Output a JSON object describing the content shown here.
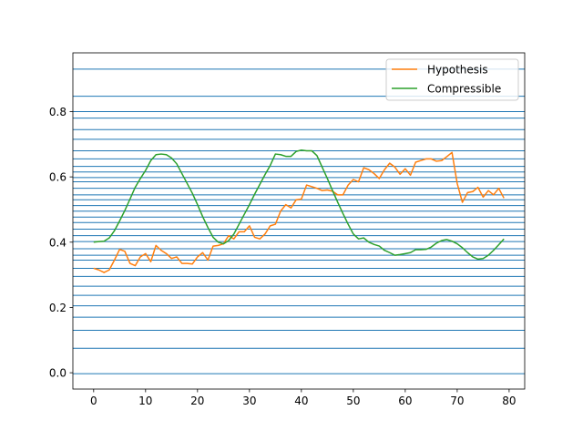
{
  "chart_data": {
    "type": "line",
    "title": "",
    "xlabel": "",
    "ylabel": "",
    "xlim": [
      -4,
      83
    ],
    "ylim": [
      -0.05,
      0.98
    ],
    "x_ticks": [
      0,
      10,
      20,
      30,
      40,
      50,
      60,
      70,
      80
    ],
    "x_tick_labels": [
      "0",
      "10",
      "20",
      "30",
      "40",
      "50",
      "60",
      "70",
      "80"
    ],
    "y_ticks": [
      0.0,
      0.2,
      0.4,
      0.6,
      0.8
    ],
    "y_tick_labels": [
      "0.0",
      "0.2",
      "0.4",
      "0.6",
      "0.8"
    ],
    "hlines": {
      "color": "#1f77b4",
      "values": [
        0.93,
        0.847,
        0.8,
        0.78,
        0.745,
        0.715,
        0.68,
        0.655,
        0.632,
        0.615,
        0.598,
        0.585,
        0.565,
        0.545,
        0.53,
        0.512,
        0.495,
        0.477,
        0.46,
        0.44,
        0.42,
        0.402,
        0.38,
        0.36,
        0.345,
        0.32,
        0.295,
        0.265,
        0.237,
        0.205,
        0.17,
        0.13,
        0.075,
        -0.003
      ]
    },
    "legend": {
      "position": "top-right",
      "entries": [
        "Hypothesis",
        "Compressible"
      ]
    },
    "series": [
      {
        "name": "Hypothesis",
        "color": "#ff7f0e",
        "x": [
          0,
          1,
          2,
          3,
          4,
          5,
          6,
          7,
          8,
          9,
          10,
          11,
          12,
          13,
          14,
          15,
          16,
          17,
          18,
          19,
          20,
          21,
          22,
          23,
          24,
          25,
          26,
          27,
          28,
          29,
          30,
          31,
          32,
          33,
          34,
          35,
          36,
          37,
          38,
          39,
          40,
          41,
          42,
          43,
          44,
          45,
          46,
          47,
          48,
          49,
          50,
          51,
          52,
          53,
          54,
          55,
          56,
          57,
          58,
          59,
          60,
          61,
          62,
          63,
          64,
          65,
          66,
          67,
          68,
          69,
          70,
          71,
          72,
          73,
          74,
          75,
          76,
          77,
          78,
          79
        ],
        "values": [
          0.32,
          0.315,
          0.307,
          0.315,
          0.345,
          0.378,
          0.372,
          0.335,
          0.328,
          0.355,
          0.365,
          0.34,
          0.39,
          0.375,
          0.365,
          0.35,
          0.355,
          0.335,
          0.335,
          0.333,
          0.355,
          0.368,
          0.345,
          0.388,
          0.39,
          0.395,
          0.42,
          0.41,
          0.432,
          0.432,
          0.45,
          0.415,
          0.41,
          0.425,
          0.45,
          0.455,
          0.495,
          0.515,
          0.505,
          0.53,
          0.532,
          0.575,
          0.57,
          0.565,
          0.558,
          0.56,
          0.556,
          0.545,
          0.545,
          0.575,
          0.592,
          0.585,
          0.628,
          0.622,
          0.61,
          0.595,
          0.622,
          0.642,
          0.63,
          0.608,
          0.625,
          0.605,
          0.645,
          0.65,
          0.655,
          0.655,
          0.648,
          0.65,
          0.662,
          0.675,
          0.58,
          0.522,
          0.552,
          0.555,
          0.568,
          0.538,
          0.558,
          0.545,
          0.565,
          0.535
        ]
      },
      {
        "name": "Compressible",
        "color": "#2ca02c",
        "x": [
          0,
          1,
          2,
          3,
          4,
          5,
          6,
          7,
          8,
          9,
          10,
          11,
          12,
          13,
          14,
          15,
          16,
          17,
          18,
          19,
          20,
          21,
          22,
          23,
          24,
          25,
          26,
          27,
          28,
          29,
          30,
          31,
          32,
          33,
          34,
          35,
          36,
          37,
          38,
          39,
          40,
          41,
          42,
          43,
          44,
          45,
          46,
          47,
          48,
          49,
          50,
          51,
          52,
          53,
          54,
          55,
          56,
          57,
          58,
          59,
          60,
          61,
          62,
          63,
          64,
          65,
          66,
          67,
          68,
          69,
          70,
          71,
          72,
          73,
          74,
          75,
          76,
          77,
          78,
          79
        ],
        "values": [
          0.4,
          0.402,
          0.403,
          0.413,
          0.435,
          0.465,
          0.497,
          0.532,
          0.568,
          0.595,
          0.62,
          0.65,
          0.668,
          0.67,
          0.668,
          0.658,
          0.64,
          0.61,
          0.58,
          0.55,
          0.515,
          0.478,
          0.445,
          0.415,
          0.4,
          0.395,
          0.405,
          0.425,
          0.455,
          0.485,
          0.515,
          0.547,
          0.577,
          0.607,
          0.635,
          0.67,
          0.668,
          0.663,
          0.663,
          0.678,
          0.682,
          0.68,
          0.68,
          0.665,
          0.63,
          0.595,
          0.558,
          0.522,
          0.488,
          0.455,
          0.425,
          0.41,
          0.413,
          0.4,
          0.393,
          0.388,
          0.375,
          0.368,
          0.36,
          0.362,
          0.365,
          0.368,
          0.377,
          0.377,
          0.378,
          0.385,
          0.397,
          0.405,
          0.408,
          0.403,
          0.395,
          0.383,
          0.368,
          0.355,
          0.348,
          0.35,
          0.36,
          0.375,
          0.392,
          0.41
        ]
      }
    ]
  }
}
